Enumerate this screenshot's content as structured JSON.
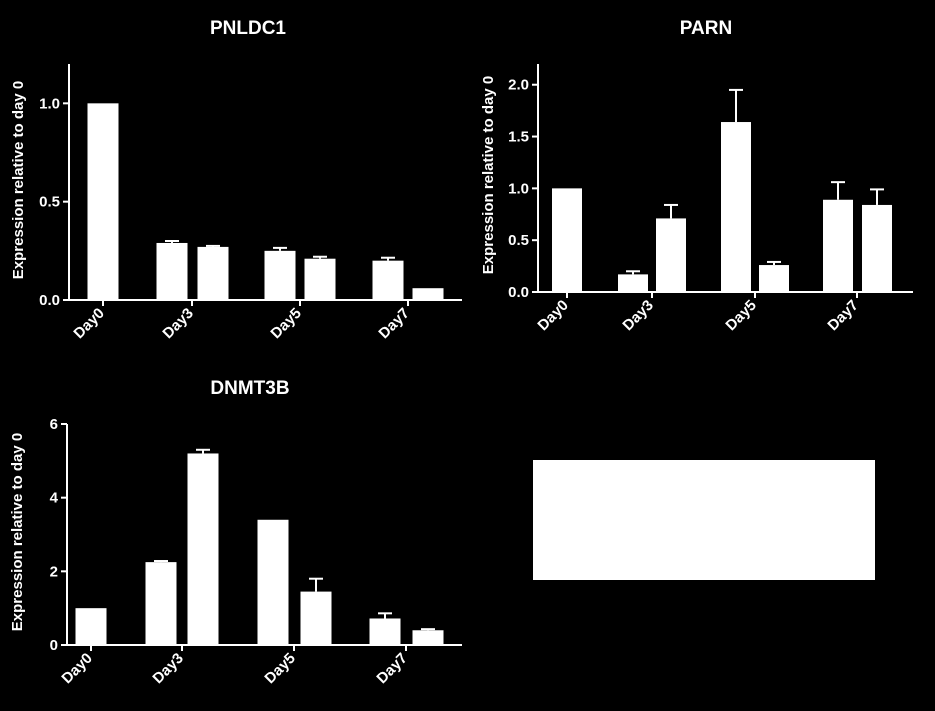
{
  "colors": {
    "background": "#000000",
    "bars": "#ffffff",
    "axes": "#ffffff"
  },
  "legend_box": {
    "visible": true,
    "color": "#ffffff"
  },
  "chart_data": [
    {
      "type": "bar",
      "title": "PNLDC1",
      "ylabel": "Expression  relative to day 0",
      "categories": [
        "Day0",
        "Day3",
        "Day5",
        "Day7"
      ],
      "ylim": [
        0,
        1.2
      ],
      "yticks": [
        0.0,
        0.5,
        1.0
      ],
      "ytick_labels": [
        "0.0",
        "0.5",
        "1.0"
      ],
      "bars": [
        {
          "category": "Day0",
          "value": 1.0,
          "error": 0
        },
        {
          "category": "Day3",
          "value": 0.29,
          "error": 0.01
        },
        {
          "category": "Day3",
          "value": 0.27,
          "error": 0.005
        },
        {
          "category": "Day5",
          "value": 0.25,
          "error": 0.015
        },
        {
          "category": "Day5",
          "value": 0.21,
          "error": 0.01
        },
        {
          "category": "Day7",
          "value": 0.2,
          "error": 0.015
        },
        {
          "category": "Day7",
          "value": 0.06,
          "error": 0
        }
      ]
    },
    {
      "type": "bar",
      "title": "PARN",
      "ylabel": "Expression  relative to day 0",
      "categories": [
        "Day0",
        "Day3",
        "Day5",
        "Day7"
      ],
      "ylim": [
        0,
        2.2
      ],
      "yticks": [
        0.0,
        0.5,
        1.0,
        1.5,
        2.0
      ],
      "ytick_labels": [
        "0.0",
        "0.5",
        "1.0",
        "1.5",
        "2.0"
      ],
      "bars": [
        {
          "category": "Day0",
          "value": 1.0,
          "error": 0
        },
        {
          "category": "Day3",
          "value": 0.17,
          "error": 0.03
        },
        {
          "category": "Day3",
          "value": 0.71,
          "error": 0.13
        },
        {
          "category": "Day5",
          "value": 1.64,
          "error": 0.31
        },
        {
          "category": "Day5",
          "value": 0.26,
          "error": 0.03
        },
        {
          "category": "Day7",
          "value": 0.89,
          "error": 0.17
        },
        {
          "category": "Day7",
          "value": 0.84,
          "error": 0.15
        }
      ]
    },
    {
      "type": "bar",
      "title": "DNMT3B",
      "ylabel": "Expression  relative to day 0",
      "categories": [
        "Day0",
        "Day3",
        "Day5",
        "Day7"
      ],
      "ylim": [
        0,
        6
      ],
      "yticks": [
        0,
        2,
        4,
        6
      ],
      "ytick_labels": [
        "0",
        "2",
        "4",
        "6"
      ],
      "bars": [
        {
          "category": "Day0",
          "value": 1.0,
          "error": 0
        },
        {
          "category": "Day3",
          "value": 2.25,
          "error": 0.03
        },
        {
          "category": "Day3",
          "value": 5.2,
          "error": 0.1
        },
        {
          "category": "Day5",
          "value": 3.4,
          "error": 0
        },
        {
          "category": "Day5",
          "value": 1.45,
          "error": 0.35
        },
        {
          "category": "Day7",
          "value": 0.72,
          "error": 0.14
        },
        {
          "category": "Day7",
          "value": 0.4,
          "error": 0.03
        }
      ]
    }
  ]
}
